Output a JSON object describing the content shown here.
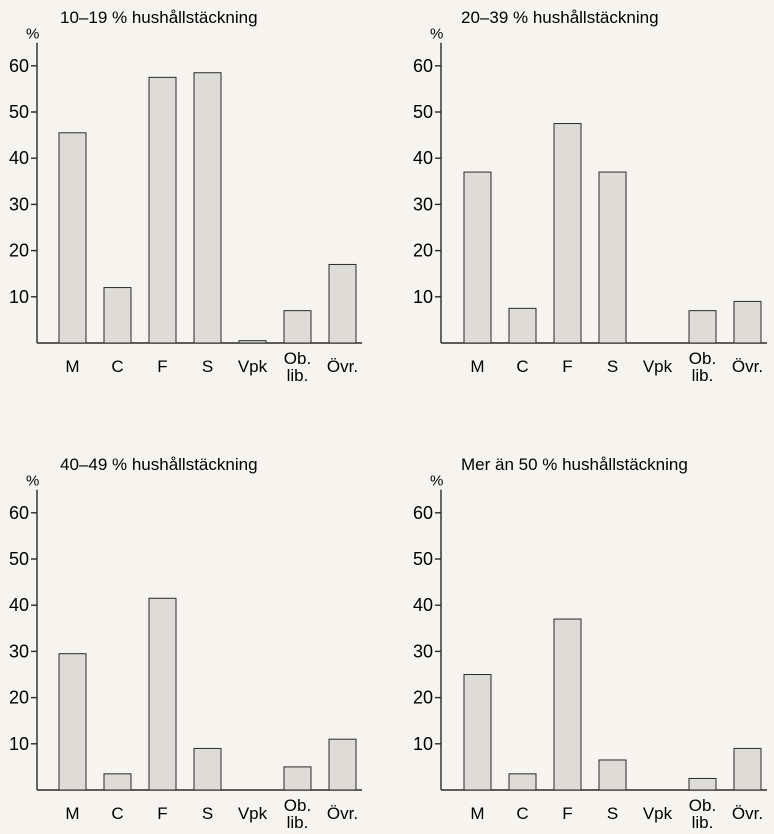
{
  "chart_data": [
    {
      "type": "bar",
      "title": "10–19 % hushållstäckning",
      "ylabel": "%",
      "ylim": [
        0,
        65
      ],
      "yticks": [
        10,
        20,
        30,
        40,
        50,
        60
      ],
      "categories": [
        [
          "M"
        ],
        [
          "C"
        ],
        [
          "F"
        ],
        [
          "S"
        ],
        [
          "Vpk"
        ],
        [
          "Ob.",
          "lib."
        ],
        [
          "Övr."
        ]
      ],
      "values": [
        45.5,
        12,
        57.5,
        58.5,
        0.5,
        7,
        17
      ]
    },
    {
      "type": "bar",
      "title": "20–39 % hushållstäckning",
      "ylabel": "%",
      "ylim": [
        0,
        65
      ],
      "yticks": [
        10,
        20,
        30,
        40,
        50,
        60
      ],
      "categories": [
        [
          "M"
        ],
        [
          "C"
        ],
        [
          "F"
        ],
        [
          "S"
        ],
        [
          "Vpk"
        ],
        [
          "Ob.",
          "lib."
        ],
        [
          "Övr."
        ]
      ],
      "values": [
        37,
        7.5,
        47.5,
        37,
        0,
        7,
        9
      ]
    },
    {
      "type": "bar",
      "title": "40–49 % hushållstäckning",
      "ylabel": "%",
      "ylim": [
        0,
        65
      ],
      "yticks": [
        10,
        20,
        30,
        40,
        50,
        60
      ],
      "categories": [
        [
          "M"
        ],
        [
          "C"
        ],
        [
          "F"
        ],
        [
          "S"
        ],
        [
          "Vpk"
        ],
        [
          "Ob.",
          "lib."
        ],
        [
          "Övr."
        ]
      ],
      "values": [
        29.5,
        3.5,
        41.5,
        9,
        0,
        5,
        11
      ]
    },
    {
      "type": "bar",
      "title": "Mer än 50 % hushållstäckning",
      "ylabel": "%",
      "ylim": [
        0,
        65
      ],
      "yticks": [
        10,
        20,
        30,
        40,
        50,
        60
      ],
      "categories": [
        [
          "M"
        ],
        [
          "C"
        ],
        [
          "F"
        ],
        [
          "S"
        ],
        [
          "Vpk"
        ],
        [
          "Ob.",
          "lib."
        ],
        [
          "Övr."
        ]
      ],
      "values": [
        25,
        3.5,
        37,
        6.5,
        0,
        2.5,
        9
      ]
    }
  ]
}
